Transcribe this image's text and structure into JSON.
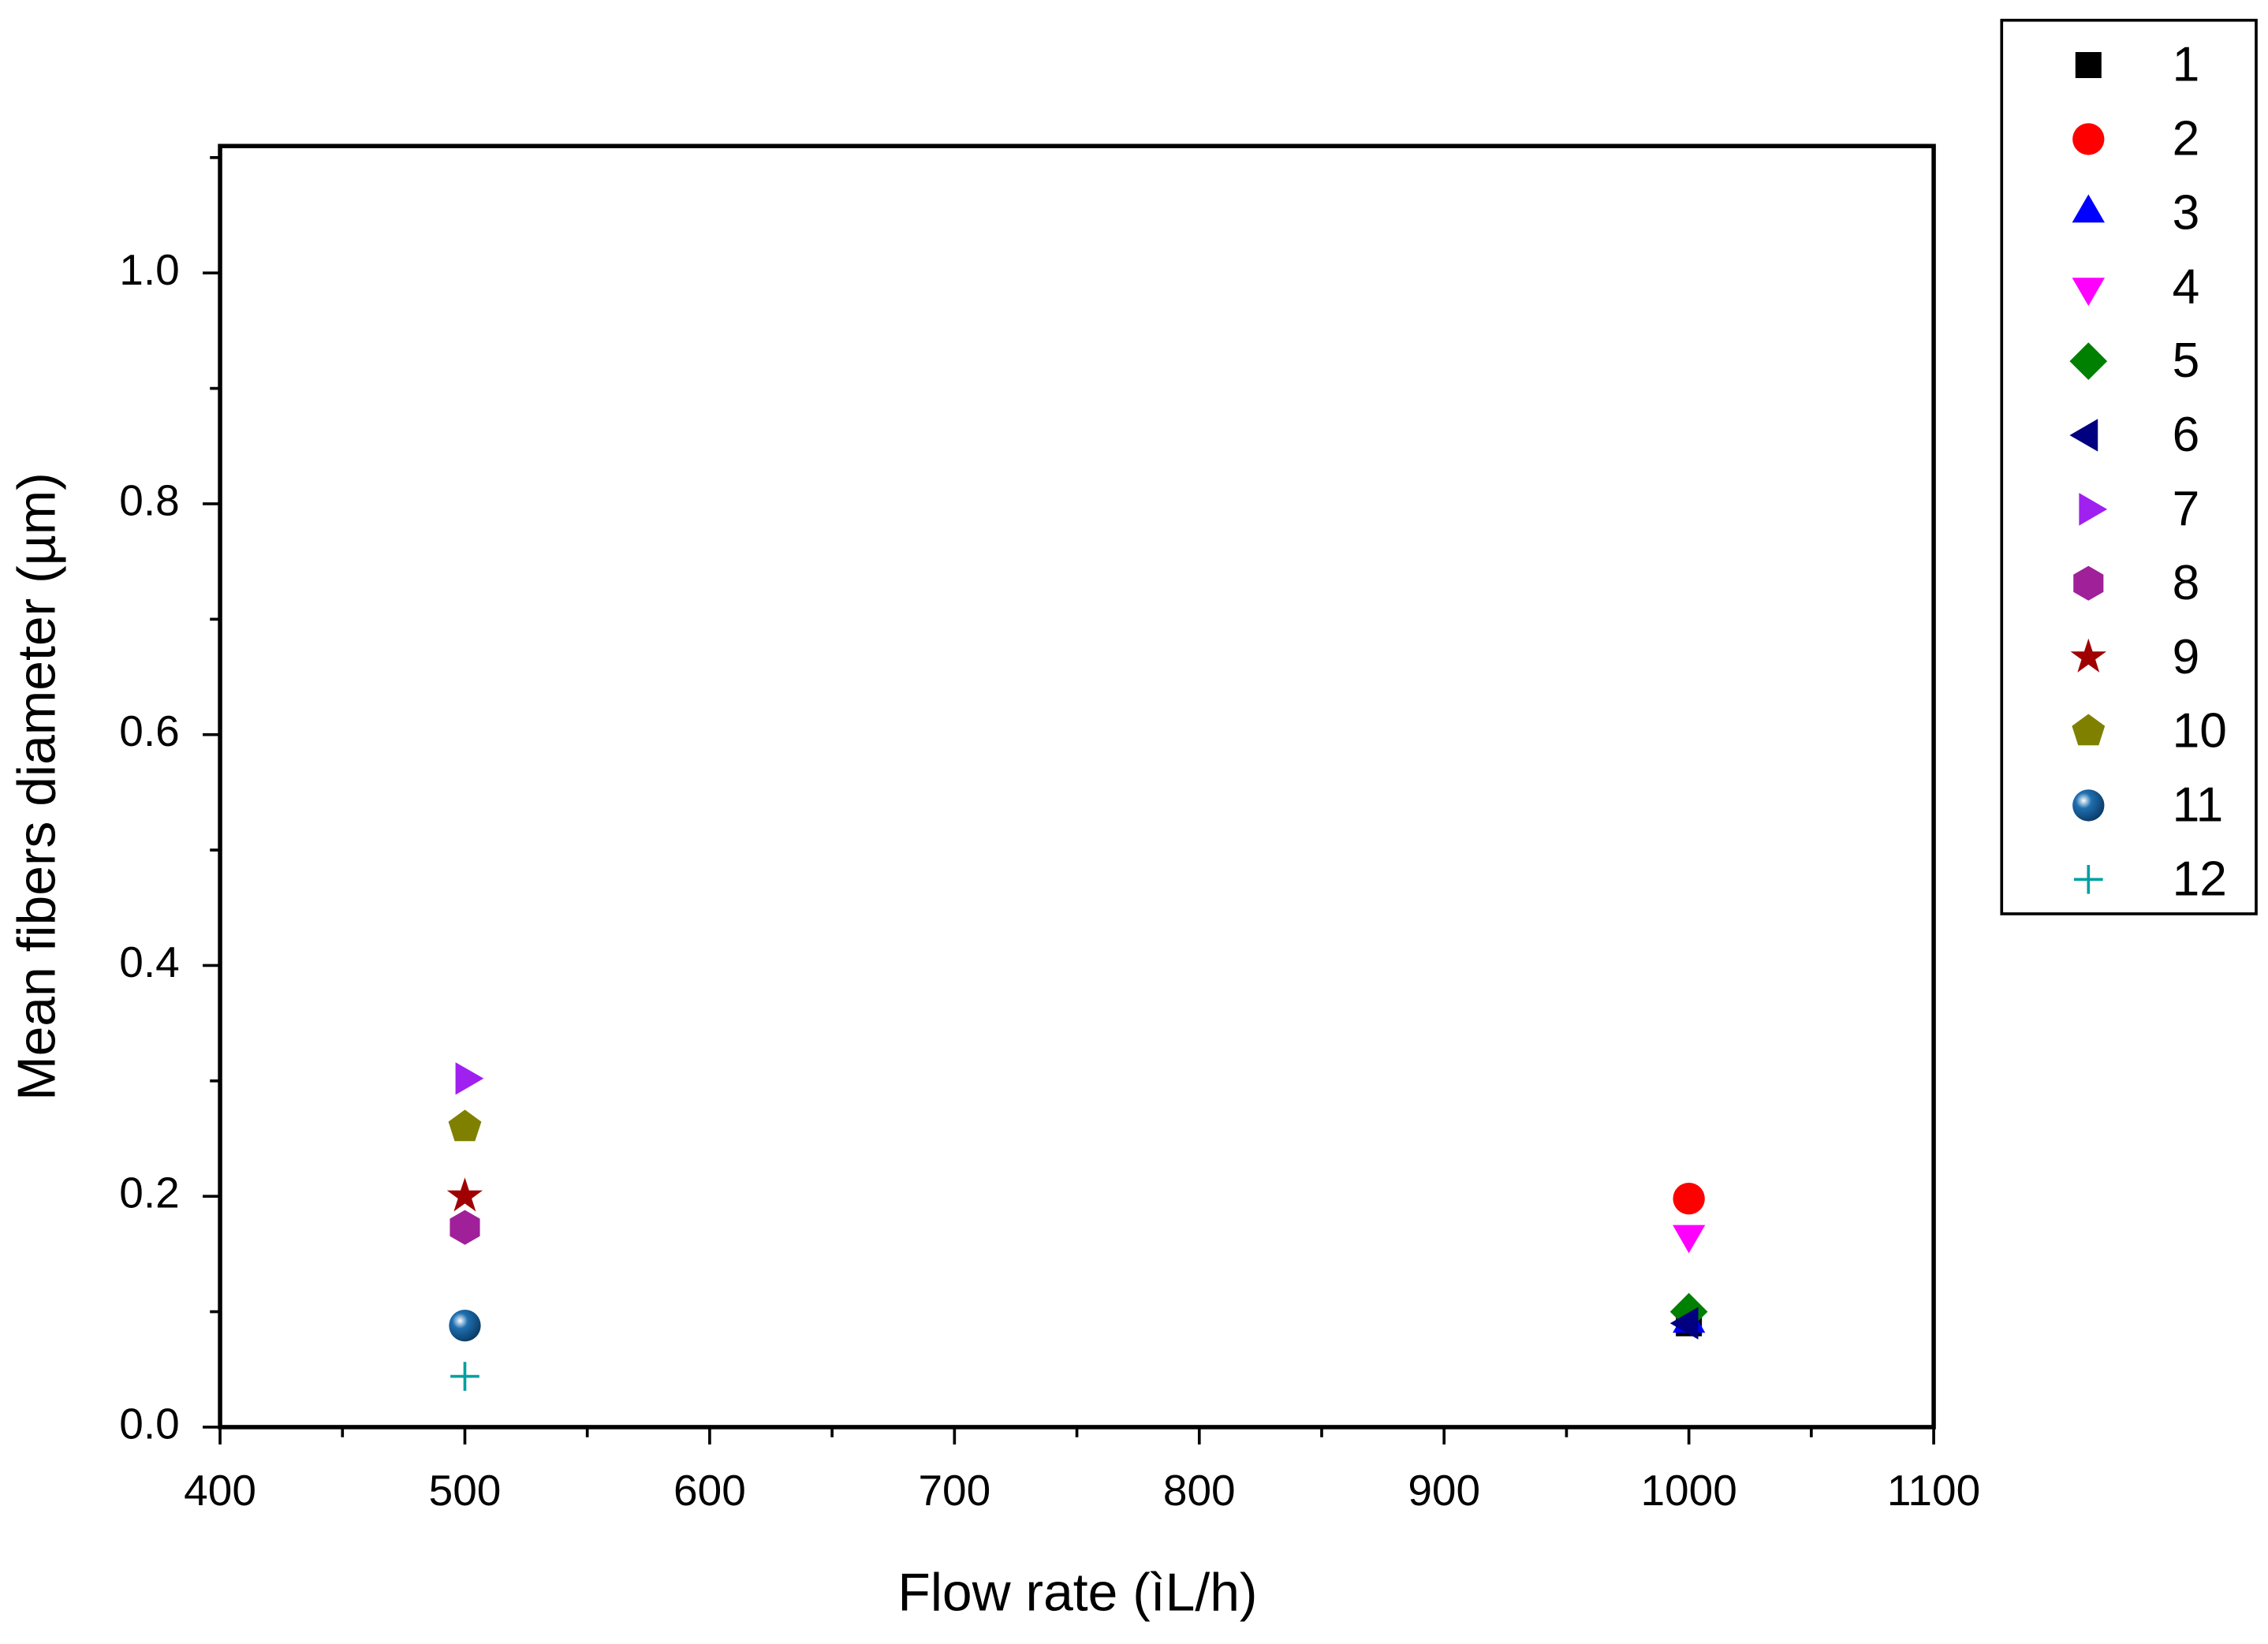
{
  "chart_data": {
    "type": "scatter",
    "x_label": "Flow rate (ìL/h)",
    "y_label": "Mean fibers diameter (µm)",
    "xlim": [
      400,
      1100
    ],
    "xticks": [
      400,
      500,
      600,
      700,
      800,
      900,
      1000,
      1100
    ],
    "x_minor_ticks": [
      450,
      550,
      650,
      750,
      850,
      950,
      1050
    ],
    "ylim": [
      0,
      1.11
    ],
    "yticks": [
      {
        "value": 0,
        "label": "0.0"
      },
      0.2,
      0.4,
      0.6,
      0.8,
      {
        "value": 1,
        "label": "1.0"
      }
    ],
    "y_minor_ticks": [
      0.1,
      0.3,
      0.5,
      0.7,
      0.9,
      1.1
    ],
    "grid": false,
    "legend": "outside-right",
    "series": [
      {
        "name": "1",
        "color": "#000000",
        "marker": "square",
        "x": [
          1000
        ],
        "values": [
          0.09
        ]
      },
      {
        "name": "2",
        "color": "#ff0000",
        "marker": "circle",
        "x": [
          1000
        ],
        "values": [
          0.198
        ]
      },
      {
        "name": "3",
        "color": "#0000ff",
        "marker": "triangle-up",
        "x": [
          1000
        ],
        "values": [
          0.09
        ]
      },
      {
        "name": "4",
        "color": "#ff00ff",
        "marker": "triangle-down",
        "x": [
          1000
        ],
        "values": [
          0.167
        ]
      },
      {
        "name": "5",
        "color": "#008000",
        "marker": "diamond",
        "x": [
          1000
        ],
        "values": [
          0.1
        ]
      },
      {
        "name": "6",
        "color": "#000080",
        "marker": "triangle-left",
        "x": [
          1000
        ],
        "values": [
          0.09
        ]
      },
      {
        "name": "7",
        "color": "#a020f0",
        "marker": "triangle-right",
        "x": [
          500
        ],
        "values": [
          0.302
        ]
      },
      {
        "name": "8",
        "color": "#a0209a",
        "marker": "hexagon",
        "x": [
          500
        ],
        "values": [
          0.173
        ]
      },
      {
        "name": "9",
        "color": "#a00000",
        "marker": "star",
        "x": [
          500
        ],
        "values": [
          0.2
        ]
      },
      {
        "name": "10",
        "color": "#808000",
        "marker": "pentagon",
        "x": [
          500
        ],
        "values": [
          0.26
        ]
      },
      {
        "name": "11",
        "color": "#1f6fb0",
        "marker": "sphere",
        "x": [
          500
        ],
        "values": [
          0.088
        ]
      },
      {
        "name": "12",
        "color": "#00a0a0",
        "marker": "plus",
        "x": [
          500
        ],
        "values": [
          0.044
        ]
      }
    ]
  }
}
